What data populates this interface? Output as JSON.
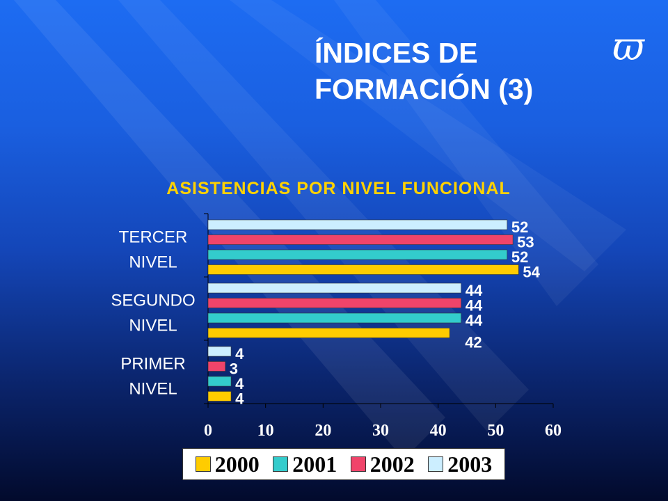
{
  "slide": {
    "title_line1": "ÍNDICES DE",
    "title_line2": "FORMACIÓN (3)",
    "logo_glyph": "ϖ"
  },
  "chart_data": {
    "type": "bar",
    "orientation": "horizontal",
    "title": "ASISTENCIAS POR NIVEL FUNCIONAL",
    "categories": [
      {
        "line1": "TERCER",
        "line2": "NIVEL"
      },
      {
        "line1": "SEGUNDO",
        "line2": "NIVEL"
      },
      {
        "line1": "PRIMER",
        "line2": "NIVEL"
      }
    ],
    "series": [
      {
        "name": "2003",
        "color": "#cceeff",
        "values": [
          52,
          44,
          4
        ]
      },
      {
        "name": "2002",
        "color": "#f0446a",
        "values": [
          53,
          44,
          3
        ]
      },
      {
        "name": "2001",
        "color": "#33cccc",
        "values": [
          52,
          44,
          4
        ]
      },
      {
        "name": "2000",
        "color": "#ffcc00",
        "values": [
          54,
          42,
          4
        ]
      }
    ],
    "xlim": [
      0,
      60
    ],
    "xticks": [
      0,
      10,
      20,
      30,
      40,
      50,
      60
    ],
    "legend": [
      "2000",
      "2001",
      "2002",
      "2003"
    ],
    "legend_placement": "bottom",
    "grid": false
  }
}
